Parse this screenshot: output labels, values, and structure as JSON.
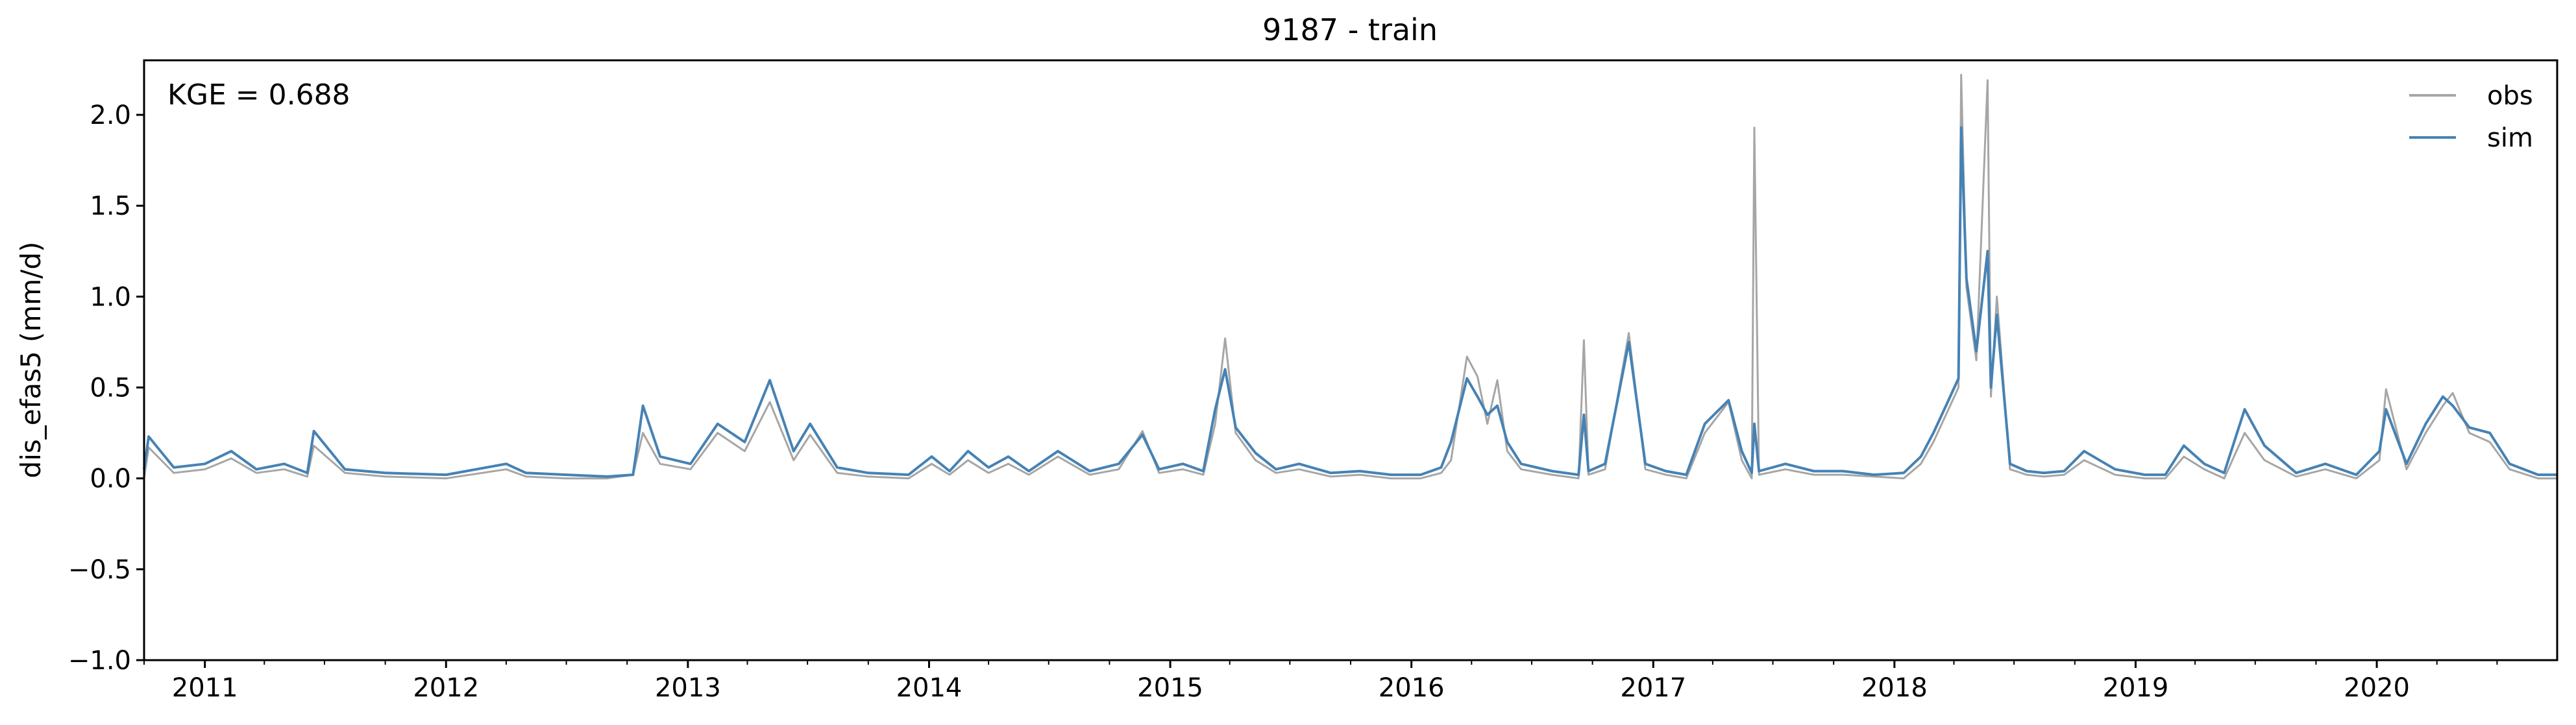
{
  "chart_data": {
    "type": "line",
    "title": "9187 - train",
    "xlabel": "",
    "ylabel": "dis_efas5 (mm/d)",
    "annotation": "KGE = 0.688",
    "xlim": [
      "2010-10-01",
      "2020-09-30"
    ],
    "ylim": [
      -1.0,
      2.3
    ],
    "x_ticks": [
      "2011",
      "2012",
      "2013",
      "2014",
      "2015",
      "2016",
      "2017",
      "2018",
      "2019",
      "2020"
    ],
    "y_ticks": [
      "−1.0",
      "−0.5",
      "0.0",
      "0.5",
      "1.0",
      "1.5",
      "2.0"
    ],
    "y_tick_values": [
      -1.0,
      -0.5,
      0.0,
      0.5,
      1.0,
      1.5,
      2.0
    ],
    "grid": false,
    "legend_position": "top-right",
    "series": [
      {
        "name": "obs",
        "color": "#a6a6a6",
        "x": [
          "2010-10-01",
          "2010-10-08",
          "2010-11-15",
          "2011-01-01",
          "2011-02-10",
          "2011-03-20",
          "2011-05-01",
          "2011-06-05",
          "2011-06-15",
          "2011-08-01",
          "2011-10-01",
          "2012-01-01",
          "2012-04-01",
          "2012-05-01",
          "2012-07-01",
          "2012-09-01",
          "2012-10-10",
          "2012-10-25",
          "2012-11-20",
          "2013-01-05",
          "2013-02-15",
          "2013-03-28",
          "2013-05-05",
          "2013-06-10",
          "2013-07-05",
          "2013-08-15",
          "2013-10-01",
          "2013-12-01",
          "2014-01-05",
          "2014-02-01",
          "2014-03-01",
          "2014-04-01",
          "2014-05-01",
          "2014-06-01",
          "2014-07-15",
          "2014-09-01",
          "2014-10-15",
          "2014-11-20",
          "2014-12-15",
          "2015-01-20",
          "2015-02-20",
          "2015-03-10",
          "2015-03-25",
          "2015-04-10",
          "2015-05-10",
          "2015-06-10",
          "2015-07-15",
          "2015-09-01",
          "2015-10-15",
          "2015-12-01",
          "2016-01-15",
          "2016-02-15",
          "2016-03-01",
          "2016-03-25",
          "2016-04-10",
          "2016-04-25",
          "2016-05-10",
          "2016-05-25",
          "2016-06-15",
          "2016-08-01",
          "2016-09-10",
          "2016-09-18",
          "2016-09-25",
          "2016-10-20",
          "2016-11-25",
          "2016-12-20",
          "2017-01-20",
          "2017-02-20",
          "2017-03-20",
          "2017-04-25",
          "2017-05-15",
          "2017-05-30",
          "2017-06-03",
          "2017-06-10",
          "2017-07-20",
          "2017-09-01",
          "2017-10-15",
          "2017-12-01",
          "2018-01-15",
          "2018-02-10",
          "2018-03-01",
          "2018-03-20",
          "2018-04-08",
          "2018-04-12",
          "2018-04-20",
          "2018-05-05",
          "2018-05-22",
          "2018-05-27",
          "2018-06-05",
          "2018-06-25",
          "2018-07-20",
          "2018-08-15",
          "2018-09-15",
          "2018-10-15",
          "2018-12-01",
          "2019-01-15",
          "2019-02-15",
          "2019-03-15",
          "2019-04-15",
          "2019-05-15",
          "2019-06-15",
          "2019-07-15",
          "2019-09-01",
          "2019-10-15",
          "2019-12-01",
          "2020-01-05",
          "2020-01-15",
          "2020-02-15",
          "2020-03-15",
          "2020-04-10",
          "2020-04-25",
          "2020-05-20",
          "2020-06-20",
          "2020-07-20",
          "2020-09-01",
          "2020-09-30"
        ],
        "values": [
          0.0,
          0.17,
          0.03,
          0.05,
          0.11,
          0.03,
          0.05,
          0.01,
          0.18,
          0.03,
          0.01,
          0.0,
          0.05,
          0.01,
          0.0,
          0.0,
          0.02,
          0.25,
          0.08,
          0.05,
          0.25,
          0.15,
          0.42,
          0.1,
          0.24,
          0.03,
          0.01,
          0.0,
          0.08,
          0.02,
          0.1,
          0.03,
          0.08,
          0.02,
          0.12,
          0.02,
          0.05,
          0.26,
          0.03,
          0.05,
          0.02,
          0.3,
          0.77,
          0.25,
          0.1,
          0.03,
          0.05,
          0.01,
          0.02,
          0.0,
          0.0,
          0.03,
          0.1,
          0.67,
          0.56,
          0.3,
          0.54,
          0.15,
          0.05,
          0.02,
          0.0,
          0.76,
          0.02,
          0.05,
          0.8,
          0.05,
          0.02,
          0.0,
          0.25,
          0.42,
          0.1,
          0.0,
          1.93,
          0.02,
          0.05,
          0.02,
          0.02,
          0.01,
          0.0,
          0.08,
          0.2,
          0.35,
          0.5,
          2.22,
          1.05,
          0.65,
          2.19,
          0.45,
          1.0,
          0.05,
          0.02,
          0.01,
          0.02,
          0.1,
          0.02,
          0.0,
          0.0,
          0.12,
          0.05,
          0.0,
          0.25,
          0.1,
          0.01,
          0.05,
          0.0,
          0.1,
          0.49,
          0.05,
          0.25,
          0.4,
          0.47,
          0.25,
          0.2,
          0.05,
          0.0,
          0.0
        ]
      },
      {
        "name": "sim",
        "color": "#4682b4",
        "x": [
          "2010-10-01",
          "2010-10-08",
          "2010-11-15",
          "2011-01-01",
          "2011-02-10",
          "2011-03-20",
          "2011-05-01",
          "2011-06-05",
          "2011-06-15",
          "2011-08-01",
          "2011-10-01",
          "2012-01-01",
          "2012-04-01",
          "2012-05-01",
          "2012-07-01",
          "2012-09-01",
          "2012-10-10",
          "2012-10-25",
          "2012-11-20",
          "2013-01-05",
          "2013-02-15",
          "2013-03-28",
          "2013-05-05",
          "2013-06-10",
          "2013-07-05",
          "2013-08-15",
          "2013-10-01",
          "2013-12-01",
          "2014-01-05",
          "2014-02-01",
          "2014-03-01",
          "2014-04-01",
          "2014-05-01",
          "2014-06-01",
          "2014-07-15",
          "2014-09-01",
          "2014-10-15",
          "2014-11-20",
          "2014-12-15",
          "2015-01-20",
          "2015-02-20",
          "2015-03-10",
          "2015-03-25",
          "2015-04-10",
          "2015-05-10",
          "2015-06-10",
          "2015-07-15",
          "2015-09-01",
          "2015-10-15",
          "2015-12-01",
          "2016-01-15",
          "2016-02-15",
          "2016-03-01",
          "2016-03-25",
          "2016-04-10",
          "2016-04-25",
          "2016-05-10",
          "2016-05-25",
          "2016-06-15",
          "2016-08-01",
          "2016-09-10",
          "2016-09-18",
          "2016-09-25",
          "2016-10-20",
          "2016-11-25",
          "2016-12-20",
          "2017-01-20",
          "2017-02-20",
          "2017-03-20",
          "2017-04-25",
          "2017-05-15",
          "2017-05-30",
          "2017-06-03",
          "2017-06-10",
          "2017-07-20",
          "2017-09-01",
          "2017-10-15",
          "2017-12-01",
          "2018-01-15",
          "2018-02-10",
          "2018-03-01",
          "2018-03-20",
          "2018-04-08",
          "2018-04-12",
          "2018-04-20",
          "2018-05-05",
          "2018-05-22",
          "2018-05-27",
          "2018-06-05",
          "2018-06-25",
          "2018-07-20",
          "2018-08-15",
          "2018-09-15",
          "2018-10-15",
          "2018-12-01",
          "2019-01-15",
          "2019-02-15",
          "2019-03-15",
          "2019-04-15",
          "2019-05-15",
          "2019-06-15",
          "2019-07-15",
          "2019-09-01",
          "2019-10-15",
          "2019-12-01",
          "2020-01-05",
          "2020-01-15",
          "2020-02-15",
          "2020-03-15",
          "2020-04-10",
          "2020-04-25",
          "2020-05-20",
          "2020-06-20",
          "2020-07-20",
          "2020-09-01",
          "2020-09-30"
        ],
        "values": [
          0.05,
          0.23,
          0.06,
          0.08,
          0.15,
          0.05,
          0.08,
          0.03,
          0.26,
          0.05,
          0.03,
          0.02,
          0.08,
          0.03,
          0.02,
          0.01,
          0.02,
          0.4,
          0.12,
          0.08,
          0.3,
          0.2,
          0.54,
          0.15,
          0.3,
          0.06,
          0.03,
          0.02,
          0.12,
          0.04,
          0.15,
          0.06,
          0.12,
          0.04,
          0.15,
          0.04,
          0.08,
          0.24,
          0.05,
          0.08,
          0.04,
          0.38,
          0.6,
          0.28,
          0.14,
          0.05,
          0.08,
          0.03,
          0.04,
          0.02,
          0.02,
          0.06,
          0.2,
          0.55,
          0.45,
          0.35,
          0.4,
          0.2,
          0.08,
          0.04,
          0.02,
          0.35,
          0.04,
          0.08,
          0.75,
          0.08,
          0.04,
          0.02,
          0.3,
          0.43,
          0.15,
          0.03,
          0.3,
          0.04,
          0.08,
          0.04,
          0.04,
          0.02,
          0.03,
          0.12,
          0.25,
          0.4,
          0.55,
          1.93,
          1.1,
          0.7,
          1.25,
          0.5,
          0.9,
          0.08,
          0.04,
          0.03,
          0.04,
          0.15,
          0.05,
          0.02,
          0.02,
          0.18,
          0.08,
          0.03,
          0.38,
          0.18,
          0.03,
          0.08,
          0.02,
          0.15,
          0.38,
          0.08,
          0.3,
          0.45,
          0.4,
          0.28,
          0.25,
          0.08,
          0.02,
          0.02
        ]
      }
    ]
  }
}
